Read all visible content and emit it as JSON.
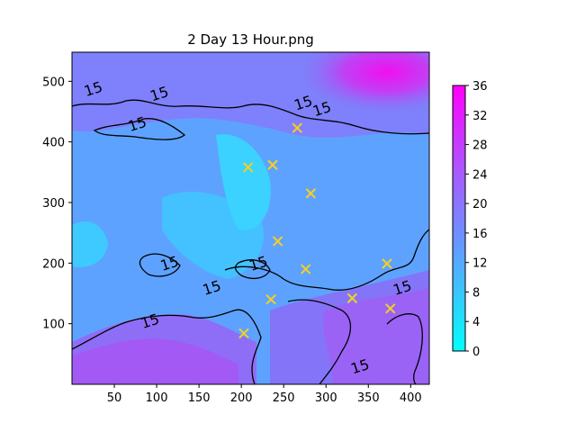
{
  "chart_data": {
    "type": "heatmap",
    "title": "2 Day 13 Hour.png",
    "xlabel": "",
    "ylabel": "",
    "xlim": [
      0,
      422
    ],
    "ylim": [
      0,
      548
    ],
    "x_ticks": [
      50,
      100,
      150,
      200,
      250,
      300,
      350,
      400
    ],
    "y_ticks": [
      100,
      200,
      300,
      400,
      500
    ],
    "colorbar": {
      "range": [
        0,
        36
      ],
      "ticks": [
        0,
        4,
        8,
        12,
        16,
        20,
        24,
        28,
        32,
        36
      ],
      "colors": [
        "#00ffff",
        "#ff00ff"
      ]
    },
    "contour_level": 15,
    "contour_labels": [
      {
        "text": "15",
        "x": 25,
        "y": 488
      },
      {
        "text": "15",
        "x": 103,
        "y": 480
      },
      {
        "text": "15",
        "x": 77,
        "y": 430
      },
      {
        "text": "15",
        "x": 273,
        "y": 465
      },
      {
        "text": "15",
        "x": 295,
        "y": 455
      },
      {
        "text": "15",
        "x": 115,
        "y": 200
      },
      {
        "text": "15",
        "x": 165,
        "y": 160
      },
      {
        "text": "15",
        "x": 220,
        "y": 200
      },
      {
        "text": "15",
        "x": 92,
        "y": 105
      },
      {
        "text": "15",
        "x": 390,
        "y": 160
      },
      {
        "text": "15",
        "x": 340,
        "y": 30
      }
    ],
    "markers": [
      {
        "x": 266,
        "y": 423
      },
      {
        "x": 208,
        "y": 358
      },
      {
        "x": 237,
        "y": 362
      },
      {
        "x": 282,
        "y": 315
      },
      {
        "x": 243,
        "y": 236
      },
      {
        "x": 276,
        "y": 190
      },
      {
        "x": 372,
        "y": 199
      },
      {
        "x": 235,
        "y": 140
      },
      {
        "x": 331,
        "y": 142
      },
      {
        "x": 376,
        "y": 125
      },
      {
        "x": 203,
        "y": 84
      }
    ],
    "marker_color": "#f5d020",
    "grid": false
  }
}
